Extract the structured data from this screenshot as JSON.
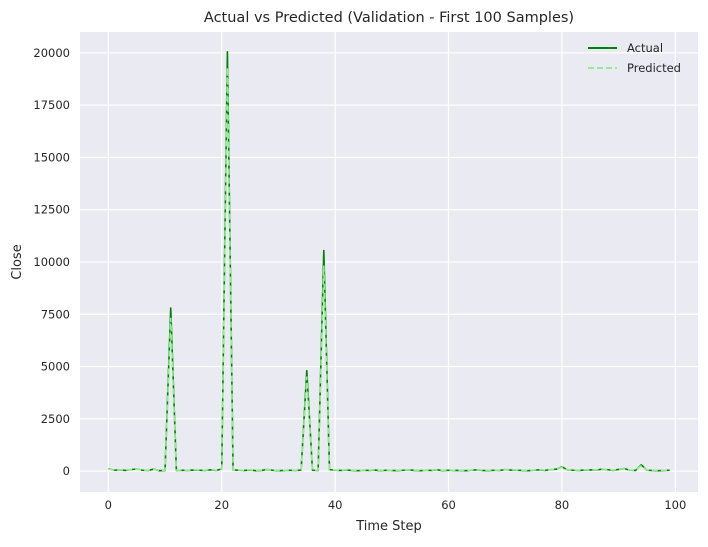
{
  "colors": {
    "background": "#ffffff",
    "plot_area": "#eaeaf2",
    "grid": "#ffffff",
    "actual": "#008000",
    "predicted": "#90ee90"
  },
  "chart_data": {
    "type": "line",
    "title": "Actual vs Predicted (Validation - First 100 Samples)",
    "xlabel": "Time Step",
    "ylabel": "Close",
    "xlim": [
      -5,
      104
    ],
    "ylim": [
      -1000,
      21000
    ],
    "xticks": [
      0,
      20,
      40,
      60,
      80,
      100
    ],
    "yticks": [
      0,
      2500,
      5000,
      7500,
      10000,
      12500,
      15000,
      17500,
      20000
    ],
    "grid": true,
    "legend_position": "top-right",
    "x": [
      0,
      1,
      2,
      3,
      4,
      5,
      6,
      7,
      8,
      9,
      10,
      11,
      12,
      13,
      14,
      15,
      16,
      17,
      18,
      19,
      20,
      21,
      22,
      23,
      24,
      25,
      26,
      27,
      28,
      29,
      30,
      31,
      32,
      33,
      34,
      35,
      36,
      37,
      38,
      39,
      40,
      41,
      42,
      43,
      44,
      45,
      46,
      47,
      48,
      49,
      50,
      51,
      52,
      53,
      54,
      55,
      56,
      57,
      58,
      59,
      60,
      61,
      62,
      63,
      64,
      65,
      66,
      67,
      68,
      69,
      70,
      71,
      72,
      73,
      74,
      75,
      76,
      77,
      78,
      79,
      80,
      81,
      82,
      83,
      84,
      85,
      86,
      87,
      88,
      89,
      90,
      91,
      92,
      93,
      94,
      95,
      96,
      97,
      98,
      99
    ],
    "series": [
      {
        "name": "Actual",
        "style": "solid",
        "color": "#008000",
        "values": [
          120,
          40,
          60,
          30,
          70,
          100,
          40,
          30,
          90,
          20,
          30,
          7800,
          30,
          40,
          30,
          50,
          40,
          30,
          60,
          30,
          100,
          20050,
          60,
          40,
          30,
          50,
          20,
          30,
          80,
          40,
          20,
          30,
          40,
          30,
          50,
          4800,
          40,
          30,
          10550,
          70,
          40,
          30,
          50,
          30,
          20,
          40,
          30,
          50,
          20,
          40,
          30,
          20,
          40,
          60,
          30,
          20,
          40,
          30,
          60,
          20,
          40,
          30,
          30,
          20,
          40,
          60,
          30,
          20,
          40,
          30,
          70,
          50,
          40,
          30,
          20,
          40,
          60,
          30,
          70,
          90,
          200,
          60,
          40,
          30,
          50,
          60,
          40,
          90,
          70,
          30,
          80,
          120,
          40,
          30,
          300,
          40,
          30,
          20,
          30,
          40
        ]
      },
      {
        "name": "Predicted",
        "style": "dashed",
        "color": "#90ee90",
        "values": [
          100,
          50,
          70,
          40,
          80,
          90,
          50,
          40,
          80,
          30,
          40,
          7300,
          40,
          50,
          40,
          60,
          50,
          40,
          70,
          40,
          110,
          19300,
          70,
          50,
          40,
          60,
          30,
          40,
          90,
          50,
          30,
          40,
          50,
          40,
          60,
          4500,
          50,
          40,
          9800,
          80,
          50,
          40,
          60,
          40,
          30,
          50,
          40,
          60,
          30,
          50,
          40,
          30,
          50,
          70,
          40,
          30,
          50,
          40,
          70,
          30,
          50,
          40,
          40,
          30,
          50,
          70,
          40,
          30,
          50,
          40,
          80,
          60,
          50,
          40,
          30,
          50,
          70,
          40,
          80,
          100,
          180,
          70,
          50,
          40,
          60,
          70,
          50,
          100,
          80,
          40,
          90,
          110,
          50,
          40,
          260,
          50,
          40,
          30,
          40,
          50
        ]
      }
    ]
  }
}
